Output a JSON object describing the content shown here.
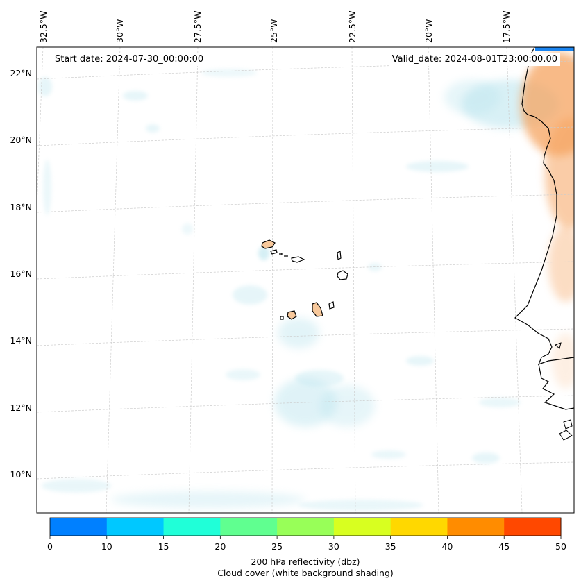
{
  "header": {
    "start_date": "Start date: 2024-07-30_00:00:00",
    "valid_date": "Valid_date: 2024-08-01T23:00:00.00"
  },
  "map": {
    "longitude_labels": [
      "32.5°W",
      "30°W",
      "27.5°W",
      "25°W",
      "22.5°W",
      "20°W",
      "17.5°W"
    ],
    "latitude_labels": [
      "22°N",
      "20°N",
      "18°N",
      "16°N",
      "14°N",
      "12°N",
      "10°N"
    ],
    "colors": {
      "land_fill": "#f7c89b",
      "coast": "#000000",
      "cloud": "#b9e4ee",
      "reflectivity_light": "#f6a461",
      "gridline": "#cccccc"
    }
  },
  "colorbar": {
    "ticks": [
      "0",
      "10",
      "15",
      "20",
      "25",
      "30",
      "35",
      "40",
      "45",
      "50"
    ],
    "colors": [
      "#0080ff",
      "#00c8ff",
      "#20ffd8",
      "#60ff90",
      "#98ff58",
      "#d8ff20",
      "#ffd800",
      "#ff8c00",
      "#ff4800"
    ],
    "label": "200 hPa reflectivity (dbz)",
    "sublabel": "Cloud cover (white background shading)"
  }
}
